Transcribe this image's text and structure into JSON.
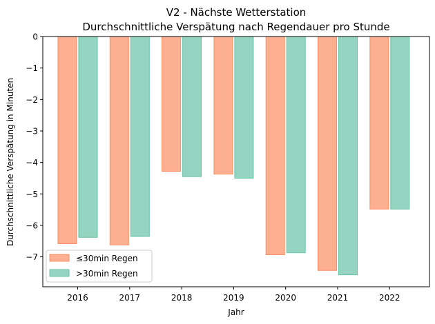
{
  "chart_data": {
    "type": "bar",
    "title": [
      "V2 - Nächste Wetterstation",
      "Durchschnittliche Verspätung nach Regendauer pro Stunde"
    ],
    "xlabel": "Jahr",
    "ylabel": "Durchschnittliche Verspätung in Minuten",
    "categories": [
      "2016",
      "2017",
      "2018",
      "2019",
      "2020",
      "2021",
      "2022"
    ],
    "series": [
      {
        "name": "≤30min Regen",
        "color": "#fc8d62",
        "values": [
          -6.58,
          -6.62,
          -4.28,
          -4.37,
          -6.93,
          -7.43,
          -5.48
        ]
      },
      {
        "name": ">30min Regen",
        "color": "#66c2a5",
        "values": [
          -6.38,
          -6.35,
          -4.45,
          -4.5,
          -6.87,
          -7.57,
          -5.48
        ]
      }
    ],
    "ylim": [
      -7.95,
      0
    ],
    "yticks": [
      0,
      -1,
      -2,
      -3,
      -4,
      -5,
      -6,
      -7
    ],
    "ytick_labels": [
      "0",
      "−1",
      "−2",
      "−3",
      "−4",
      "−5",
      "−6",
      "−7"
    ],
    "grid": false,
    "legend_position": "lower-left"
  }
}
